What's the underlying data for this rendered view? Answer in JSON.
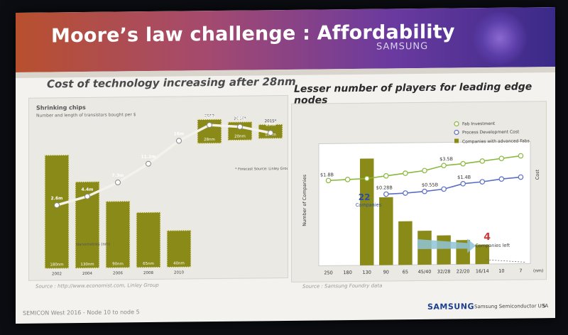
{
  "slide": {
    "title": "Moore’s law challenge : Affordability",
    "brand_watermark": "SAMSUNG",
    "left_heading": "Cost of technology increasing after 28nm",
    "right_heading": "Lesser number of players for leading edge nodes",
    "left_source": "Source : http://www.economist.com, Linley Group",
    "right_source": "Source : Samsung Foundry data",
    "footer_left": "SEMICON West 2016 - Node 10 to node 5",
    "footer_brand": "SAMSUNG",
    "footer_sub": "Samsung Semiconductor USA",
    "page_number": "5",
    "colors": {
      "olive": "#8a8a18",
      "green_line": "#8ab83c",
      "blue_line": "#5a6ec4"
    }
  },
  "chart_data": [
    {
      "type": "bar",
      "title": "Shrinking chips",
      "subtitle": "Number and length of transistors bought per $",
      "xlabel": "Nanometres (nm)",
      "categories": [
        "2002",
        "2004",
        "2006",
        "2008",
        "2010",
        "2012",
        "2014*",
        "2015*"
      ],
      "nm_labels": [
        "180nm",
        "130nm",
        "90nm",
        "65nm",
        "40nm",
        "28nm",
        "20nm",
        "16nm"
      ],
      "series": [
        {
          "name": "transistors per $",
          "values": [
            2.6,
            4.4,
            7.3,
            11.2,
            16,
            20,
            20,
            19
          ]
        }
      ],
      "value_labels": [
        "2.6m",
        "4.4m",
        "7.3m",
        "11.2m",
        "16m",
        "20m",
        "20m",
        "19m"
      ],
      "annotation": "* Forecast   Source: Linley Group",
      "ylim": [
        0,
        22
      ]
    },
    {
      "type": "bar",
      "ylabel": "Number of Companies",
      "y2label": "Cost",
      "xlabel": "(nm)",
      "categories": [
        "250",
        "180",
        "130",
        "90",
        "65",
        "45/40",
        "32/28",
        "22/20",
        "16/14",
        "10",
        "7"
      ],
      "series": [
        {
          "name": "Companies with advanced Fabs",
          "values": [
            null,
            null,
            22,
            14,
            9,
            7,
            6,
            5,
            4,
            null,
            null
          ]
        },
        {
          "name": "Fab Investment",
          "values": [
            1.8,
            1.9,
            2.0,
            2.3,
            2.6,
            2.9,
            3.5,
            3.7,
            4.0,
            4.3,
            4.6
          ]
        },
        {
          "name": "Process Development Cost",
          "values": [
            null,
            null,
            null,
            0.28,
            0.38,
            0.55,
            0.8,
            1.4,
            1.6,
            1.9,
            2.1
          ]
        }
      ],
      "value_labels": {
        "fab_start": "$1.8B",
        "fab_mid": "$3.5B",
        "proc_start": "$0.28B",
        "proc_mid": "$0.55B",
        "proc_late": "$1.4B"
      },
      "callouts": {
        "start_count": "22",
        "start_text": "Companies",
        "end_count": "4",
        "end_text": "Companies left"
      },
      "legend": [
        "Fab Investment",
        "Process Development Cost",
        "Companies with advanced Fabs"
      ],
      "legend_position": "top-right",
      "ylim": [
        0,
        24
      ]
    }
  ]
}
